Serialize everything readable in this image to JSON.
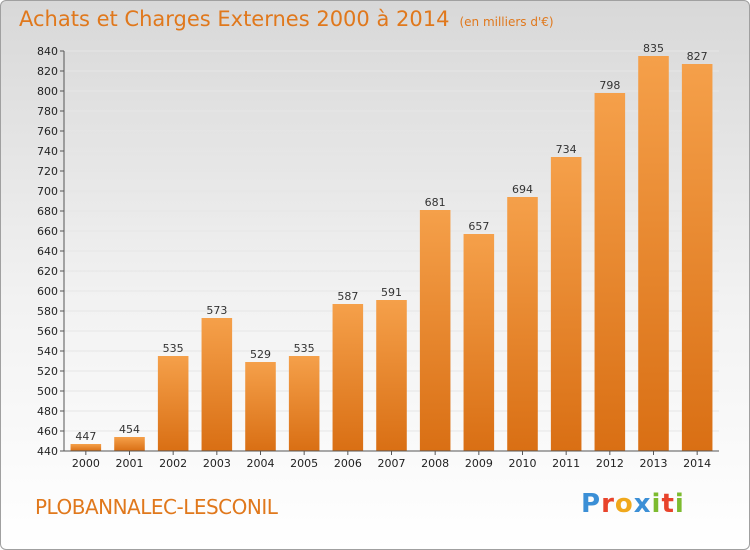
{
  "chart_data": {
    "type": "bar",
    "title": "Achats et Charges Externes 2000 à 2014",
    "unit_label": "(en milliers d'€)",
    "categories": [
      "2000",
      "2001",
      "2002",
      "2003",
      "2004",
      "2005",
      "2006",
      "2007",
      "2008",
      "2009",
      "2010",
      "2011",
      "2012",
      "2013",
      "2014"
    ],
    "values": [
      447,
      454,
      535,
      573,
      529,
      535,
      587,
      591,
      681,
      657,
      694,
      734,
      798,
      835,
      827
    ],
    "ylim": [
      440,
      840
    ],
    "yticks": [
      440,
      460,
      480,
      500,
      520,
      540,
      560,
      580,
      600,
      620,
      640,
      660,
      680,
      700,
      720,
      740,
      760,
      780,
      800,
      820,
      840
    ],
    "grid": true,
    "bar_color_light": "#f5a04a",
    "bar_color_dark": "#d96f14"
  },
  "footer": {
    "commune": "PLOBANNALEC-LESCONIL"
  },
  "logo": {
    "letters": [
      {
        "char": "P",
        "color": "#3b8fd6"
      },
      {
        "char": "r",
        "color": "#e8432b"
      },
      {
        "char": "o",
        "color": "#f0a81c"
      },
      {
        "char": "x",
        "color": "#3b8fd6"
      },
      {
        "char": "i",
        "color": "#7dbb2f"
      },
      {
        "char": "t",
        "color": "#e8432b"
      },
      {
        "char": "i",
        "color": "#7dbb2f"
      }
    ]
  },
  "colors": {
    "accent": "#e0781c",
    "grid": "#e6e6e6"
  }
}
